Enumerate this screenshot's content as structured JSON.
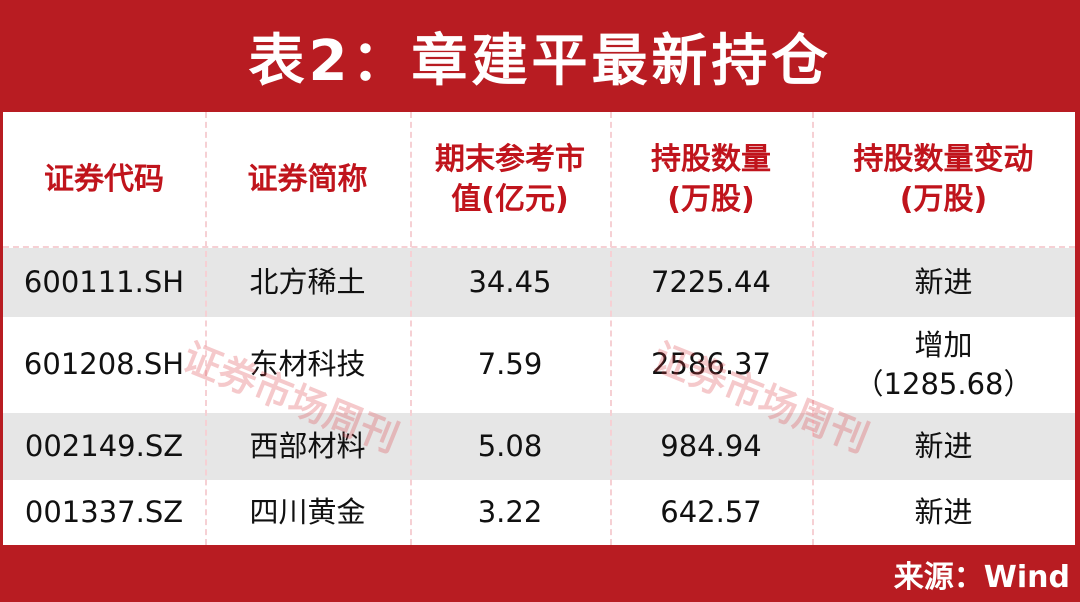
{
  "title": "表2：章建平最新持仓",
  "table": {
    "headers": [
      "证券代码",
      "证券简称",
      "期末参考市值(亿元)",
      "持股数量(万股)",
      "持股数量变动(万股)"
    ],
    "rows": [
      [
        "600111.SH",
        "北方稀土",
        "34.45",
        "7225.44",
        "新进"
      ],
      [
        "601208.SH",
        "东材科技",
        "7.59",
        "2586.37",
        "增加（1285.68）"
      ],
      [
        "002149.SZ",
        "西部材料",
        "5.08",
        "984.94",
        "新进"
      ],
      [
        "001337.SZ",
        "四川黄金",
        "3.22",
        "642.57",
        "新进"
      ]
    ]
  },
  "watermark": "证券市场周刊",
  "footer": "来源：Wind",
  "colors": {
    "frame": "#b81c22",
    "header_text": "#c0141c",
    "stripe": "#e6e6e6"
  }
}
